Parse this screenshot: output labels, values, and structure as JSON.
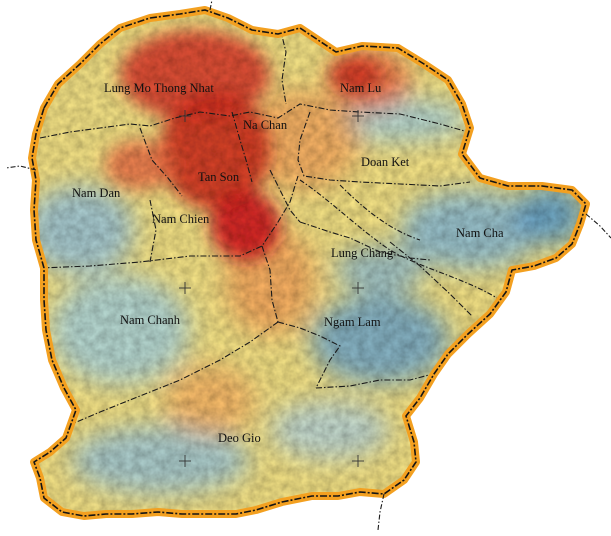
{
  "map": {
    "communes": [
      {
        "id": "lung-mo-thong-nhat",
        "label": "Lung Mo Thong Nhat"
      },
      {
        "id": "nam-lu",
        "label": "Nam Lu"
      },
      {
        "id": "na-chan",
        "label": "Na Chan"
      },
      {
        "id": "doan-ket",
        "label": "Doan Ket"
      },
      {
        "id": "nam-dan",
        "label": "Nam Dan"
      },
      {
        "id": "tan-son",
        "label": "Tan Son"
      },
      {
        "id": "nam-chien",
        "label": "Nam Chien"
      },
      {
        "id": "nam-cha",
        "label": "Nam Cha"
      },
      {
        "id": "lung-chang",
        "label": "Lung Chang"
      },
      {
        "id": "nam-chanh",
        "label": "Nam Chanh"
      },
      {
        "id": "ngam-lam",
        "label": "Ngam Lam"
      },
      {
        "id": "deo-gio",
        "label": "Deo Gio"
      }
    ],
    "colors": {
      "high": "#d7191c",
      "mid_high": "#fdae61",
      "mid": "#ffffbf",
      "mid_low": "#abd9e9",
      "low": "#2c7bb6",
      "boundary_halo": "#f3a020",
      "boundary_line": "#141414"
    }
  }
}
